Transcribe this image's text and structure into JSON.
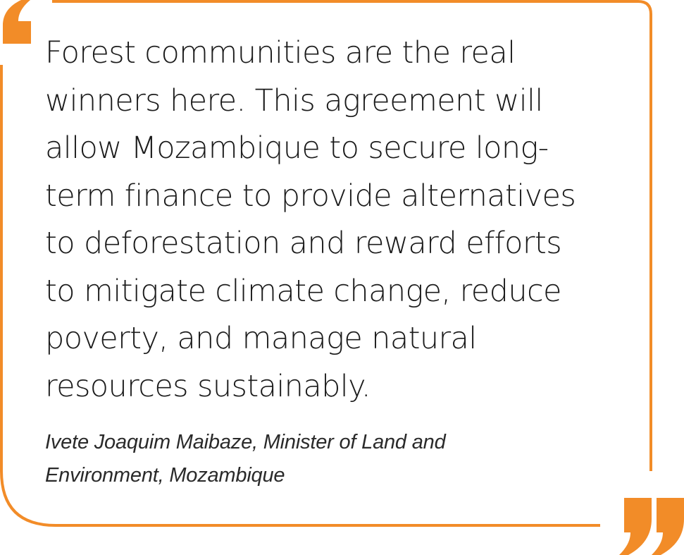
{
  "quote": {
    "text": "Forest communities are the real\nwinners here. This agreement will\nallow Mozambique to secure long-\nterm finance to provide alternatives\nto deforestation and reward efforts\nto mitigate climate change, reduce\npoverty, and manage natural\nresources sustainably.",
    "attribution": "Ivete Joaquim Maibaze, Minister of Land and\nEnvironment, Mozambique"
  },
  "colors": {
    "accent": "#F28C28",
    "text": "#1b1b1b",
    "background": "#ffffff"
  },
  "icons": {
    "open": "open-quote-mark-icon",
    "close": "close-quote-mark-icon"
  }
}
